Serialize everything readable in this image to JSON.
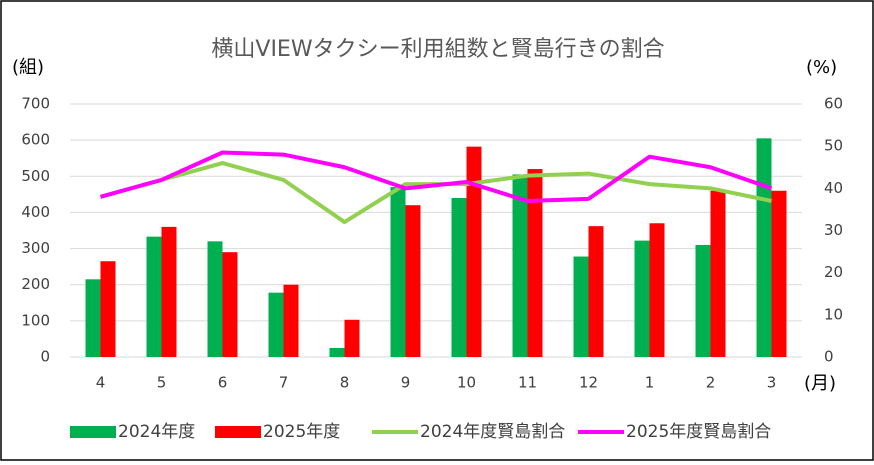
{
  "chart_data": {
    "type": "bar_line",
    "title": "横山VIEWタクシー利用組数と賢島行きの割合",
    "y_label": "(組)",
    "y2_label": "(%)",
    "x_label": "(月)",
    "categories": [
      "4",
      "5",
      "6",
      "7",
      "8",
      "9",
      "10",
      "11",
      "12",
      "1",
      "2",
      "3"
    ],
    "series": [
      {
        "name": "2024年度",
        "kind": "bar",
        "color": "#00b050",
        "values": [
          215,
          333,
          320,
          178,
          25,
          470,
          440,
          505,
          278,
          322,
          310,
          605
        ]
      },
      {
        "name": "2025年度",
        "kind": "bar",
        "color": "#ff0000",
        "values": [
          265,
          360,
          290,
          200,
          103,
          420,
          582,
          520,
          362,
          370,
          460,
          460
        ]
      },
      {
        "name": "2024年度賢島割合",
        "kind": "line",
        "axis": "y2",
        "color": "#92d050",
        "values": [
          38,
          42,
          46,
          42,
          32,
          41,
          41,
          43,
          43.5,
          41,
          40,
          37
        ]
      },
      {
        "name": "2025年度賢島割合",
        "kind": "line",
        "axis": "y2",
        "color": "#ff00ff",
        "values": [
          38,
          42,
          48.5,
          48,
          45,
          40,
          41.5,
          37,
          37.5,
          47.5,
          45,
          40
        ]
      }
    ],
    "ylim": [
      0,
      700
    ],
    "yticks": [
      0,
      100,
      200,
      300,
      400,
      500,
      600,
      700
    ],
    "y2lim": [
      0,
      60
    ],
    "y2ticks": [
      0,
      10,
      20,
      30,
      40,
      50,
      60
    ],
    "grid": true,
    "legend": "bottom"
  }
}
